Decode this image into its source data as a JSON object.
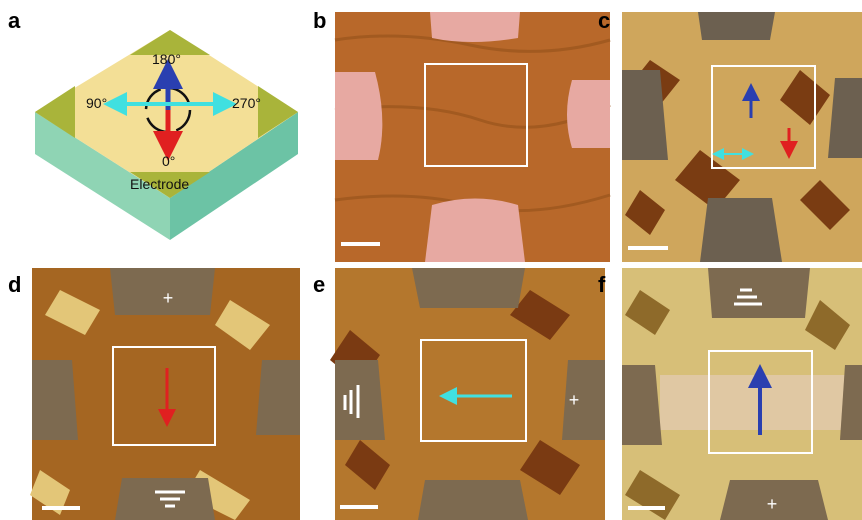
{
  "panels": [
    {
      "label": "a",
      "annotations": [
        "180°",
        "90°",
        "270°",
        "0°",
        "Electrode"
      ]
    },
    {
      "label": "b"
    },
    {
      "label": "c"
    },
    {
      "label": "d",
      "annotations": [
        "+"
      ]
    },
    {
      "label": "e",
      "annotations": [
        "+"
      ]
    },
    {
      "label": "f",
      "annotations": [
        "+"
      ]
    }
  ]
}
